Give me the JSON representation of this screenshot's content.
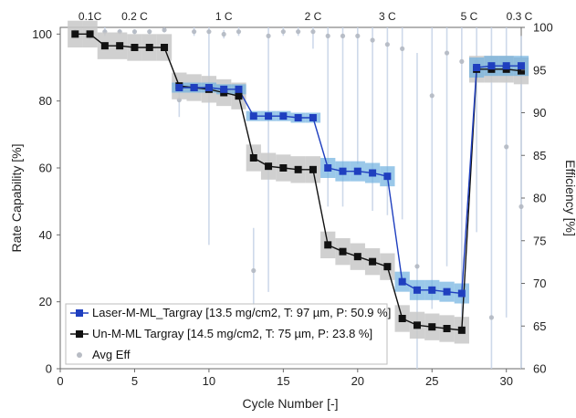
{
  "chart_data": {
    "type": "line",
    "xlabel": "Cycle Number [-]",
    "ylabel": "Rate Capability [%]",
    "y2label": "Efficiency [%]",
    "xlim": [
      0,
      31
    ],
    "ylim": [
      0,
      102
    ],
    "y2lim": [
      60,
      100
    ],
    "xticks": [
      0,
      5,
      10,
      15,
      20,
      25,
      30
    ],
    "yticks": [
      0,
      20,
      40,
      60,
      80,
      100
    ],
    "y2ticks": [
      60,
      65,
      70,
      75,
      80,
      85,
      90,
      95,
      100
    ],
    "rate_labels": [
      {
        "label": "0.1C",
        "x": 2
      },
      {
        "label": "0.2 C",
        "x": 5
      },
      {
        "label": "1 C",
        "x": 11
      },
      {
        "label": "2 C",
        "x": 17
      },
      {
        "label": "3 C",
        "x": 22
      },
      {
        "label": "5 C",
        "x": 27.5
      },
      {
        "label": "0.3 C",
        "x": 31
      }
    ],
    "series": [
      {
        "name": "Laser-M-ML_Targray [13.5 mg/cm2, T: 97 µm, P: 50.9 %]",
        "color": "#1f3fbf",
        "band_color": "#6fb0e0",
        "x": [
          8,
          9,
          10,
          11,
          12,
          13,
          14,
          15,
          16,
          17,
          18,
          19,
          20,
          21,
          22,
          23,
          24,
          25,
          26,
          27,
          28,
          29,
          30,
          31
        ],
        "y": [
          84,
          84,
          84,
          83.5,
          83.5,
          75.5,
          75.5,
          75.5,
          75,
          75,
          60,
          59,
          59,
          58.5,
          57.5,
          26,
          23.5,
          23.5,
          23,
          22.5,
          90,
          90.5,
          90.5,
          90.5
        ],
        "err": [
          1.5,
          1.5,
          1.5,
          1.5,
          1.5,
          1.5,
          1.5,
          1.5,
          1.5,
          1.5,
          3,
          3,
          3,
          3,
          3,
          3,
          3,
          3,
          3,
          3,
          3,
          3,
          3,
          3
        ]
      },
      {
        "name": "Un-M-ML Targray [14.5 mg/cm2, T: 75 µm, P: 23.8 %]",
        "color": "#111111",
        "band_color": "#c8c8c8",
        "x": [
          1,
          2,
          3,
          4,
          5,
          6,
          7,
          8,
          9,
          10,
          11,
          12,
          13,
          14,
          15,
          16,
          17,
          18,
          19,
          20,
          21,
          22,
          23,
          24,
          25,
          26,
          27,
          28,
          29,
          30,
          31
        ],
        "y": [
          100,
          100,
          96.5,
          96.5,
          96,
          96,
          96,
          84.5,
          84,
          83.5,
          82.5,
          81.5,
          63,
          60.5,
          60,
          59.5,
          59.5,
          37,
          35,
          33.5,
          32,
          30.5,
          15,
          13,
          12.5,
          12,
          11.5,
          89.5,
          89.5,
          89.5,
          89
        ],
        "err": [
          4,
          4,
          4,
          4,
          4,
          4,
          4,
          4,
          4,
          4,
          4,
          4,
          4,
          4,
          4,
          4,
          4,
          4,
          4,
          4,
          4,
          4,
          4,
          4,
          4,
          4,
          4,
          4,
          4,
          4,
          4
        ]
      }
    ],
    "avg_eff": {
      "name": "Avg Eff",
      "color": "#9aa0aa",
      "x": [
        1,
        2,
        3,
        4,
        5,
        6,
        7,
        8,
        9,
        10,
        11,
        12,
        13,
        14,
        15,
        16,
        17,
        18,
        19,
        20,
        21,
        22,
        23,
        24,
        25,
        26,
        27,
        28,
        29,
        30,
        31
      ],
      "y": [
        99.5,
        99,
        99.5,
        99.5,
        99.5,
        99.5,
        99.7,
        91.5,
        99.5,
        99.5,
        99.2,
        99.5,
        71.5,
        99,
        99.5,
        99.5,
        99.5,
        99,
        99,
        99,
        98.5,
        98,
        97.5,
        72,
        92,
        97,
        96,
        96,
        66,
        86,
        79
      ],
      "err": [
        0.3,
        0.5,
        0.5,
        0.3,
        0.3,
        0.3,
        0.3,
        2,
        0.5,
        25,
        0.5,
        0.5,
        5,
        30,
        0.5,
        0.5,
        2,
        20,
        20,
        15,
        20,
        20,
        20,
        25,
        25,
        25,
        30,
        20,
        40,
        20,
        20
      ]
    }
  }
}
